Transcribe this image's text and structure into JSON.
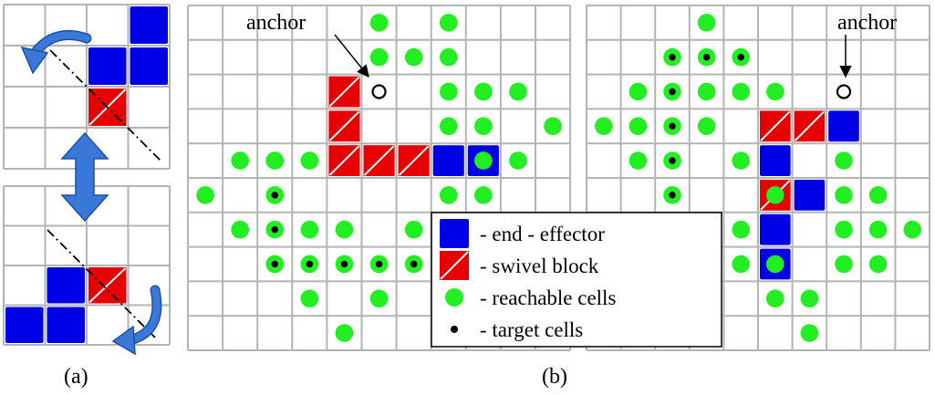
{
  "labels": {
    "panel_a": "(a)",
    "panel_b": "(b)",
    "anchor_left": "anchor",
    "anchor_right": "anchor"
  },
  "legend": [
    {
      "kind": "end-effector",
      "text": "- end - effector"
    },
    {
      "kind": "swivel",
      "text": "- swivel block"
    },
    {
      "kind": "reachable",
      "text": "- reachable cells"
    },
    {
      "kind": "target",
      "text": "- target cells"
    }
  ],
  "colors": {
    "grid_line": "#b4b4b4",
    "end_effector": "#0000e6",
    "swivel": "#e60000",
    "reachable": "#22ee22",
    "target": "#000000",
    "arrow": "#3a78d8",
    "arrow_dark": "#1d4fa8"
  },
  "grids": {
    "a_top": {
      "cols": 4,
      "rows": 4,
      "blue": [
        [
          3,
          0
        ],
        [
          2,
          1
        ],
        [
          3,
          1
        ]
      ],
      "red": [
        [
          2,
          2
        ]
      ]
    },
    "a_bottom": {
      "cols": 4,
      "rows": 4,
      "blue": [
        [
          1,
          2
        ],
        [
          0,
          3
        ],
        [
          1,
          3
        ]
      ],
      "red": [
        [
          2,
          2
        ]
      ]
    },
    "b_left": {
      "cols": 11,
      "rows": 10,
      "red": [
        [
          4,
          2
        ],
        [
          4,
          3
        ],
        [
          4,
          4
        ],
        [
          5,
          4
        ],
        [
          6,
          4
        ]
      ],
      "blue": [
        [
          7,
          4
        ],
        [
          8,
          4
        ]
      ],
      "anchor": [
        5,
        2
      ],
      "reachable": [
        [
          5,
          0
        ],
        [
          7,
          0
        ],
        [
          5,
          1
        ],
        [
          6,
          1
        ],
        [
          7,
          1
        ],
        [
          7,
          2
        ],
        [
          8,
          2
        ],
        [
          9,
          2
        ],
        [
          7,
          3
        ],
        [
          8,
          3
        ],
        [
          10,
          3
        ],
        [
          1,
          4
        ],
        [
          2,
          4
        ],
        [
          3,
          4
        ],
        [
          8,
          4
        ],
        [
          9,
          4
        ],
        [
          0,
          5
        ],
        [
          2,
          5
        ],
        [
          7,
          5
        ],
        [
          8,
          5
        ],
        [
          1,
          6
        ],
        [
          2,
          6
        ],
        [
          3,
          6
        ],
        [
          4,
          6
        ],
        [
          6,
          6
        ],
        [
          2,
          7
        ],
        [
          3,
          7
        ],
        [
          4,
          7
        ],
        [
          5,
          7
        ],
        [
          6,
          7
        ],
        [
          3,
          8
        ],
        [
          5,
          8
        ],
        [
          4,
          9
        ]
      ],
      "target": [
        [
          2,
          5
        ],
        [
          2,
          6
        ],
        [
          2,
          7
        ],
        [
          3,
          7
        ],
        [
          4,
          7
        ],
        [
          5,
          7
        ],
        [
          6,
          7
        ]
      ]
    },
    "b_right": {
      "cols": 10,
      "rows": 10,
      "red": [
        [
          5,
          3
        ],
        [
          6,
          3
        ],
        [
          5,
          5
        ]
      ],
      "blue": [
        [
          7,
          3
        ],
        [
          5,
          4
        ],
        [
          6,
          5
        ],
        [
          5,
          6
        ],
        [
          5,
          7
        ]
      ],
      "anchor": [
        7,
        2
      ],
      "reachable": [
        [
          3,
          0
        ],
        [
          2,
          1
        ],
        [
          3,
          1
        ],
        [
          4,
          1
        ],
        [
          1,
          2
        ],
        [
          2,
          2
        ],
        [
          3,
          2
        ],
        [
          4,
          2
        ],
        [
          5,
          2
        ],
        [
          0,
          3
        ],
        [
          1,
          3
        ],
        [
          2,
          3
        ],
        [
          3,
          3
        ],
        [
          1,
          4
        ],
        [
          2,
          4
        ],
        [
          4,
          4
        ],
        [
          7,
          4
        ],
        [
          2,
          5
        ],
        [
          5,
          5
        ],
        [
          7,
          5
        ],
        [
          8,
          5
        ],
        [
          4,
          6
        ],
        [
          7,
          6
        ],
        [
          8,
          6
        ],
        [
          9,
          6
        ],
        [
          4,
          7
        ],
        [
          5,
          7
        ],
        [
          7,
          7
        ],
        [
          8,
          7
        ],
        [
          5,
          8
        ],
        [
          6,
          8
        ],
        [
          6,
          9
        ]
      ],
      "target": [
        [
          2,
          1
        ],
        [
          3,
          1
        ],
        [
          4,
          1
        ],
        [
          2,
          2
        ],
        [
          2,
          3
        ],
        [
          2,
          4
        ],
        [
          2,
          5
        ]
      ]
    }
  }
}
